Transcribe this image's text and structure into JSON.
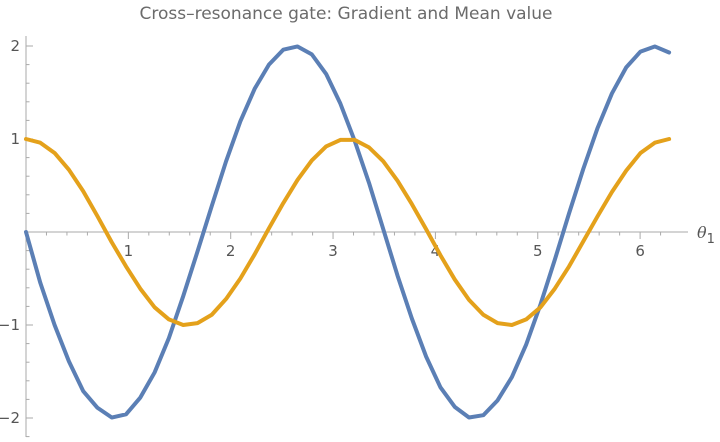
{
  "chart_data": {
    "type": "line",
    "title": "Cross–resonance gate: Gradient and Mean value",
    "xlabel": "θ",
    "xlabel_subscript": "1",
    "ylabel": "",
    "xlim": [
      0,
      6.35
    ],
    "ylim": [
      -2.2,
      2.1
    ],
    "x_ticks": [
      1,
      2,
      3,
      4,
      5,
      6
    ],
    "x_tick_labels": [
      "1",
      "2",
      "3",
      "4",
      "5",
      "6"
    ],
    "y_ticks": [
      -2,
      -1,
      1,
      2
    ],
    "y_tick_labels": [
      "−2",
      "−1",
      "1",
      "2"
    ],
    "grid": false,
    "legend": "none",
    "series": [
      {
        "color": "#5b7fb5",
        "x": [
          0,
          0.1396,
          0.2793,
          0.4189,
          0.5585,
          0.6981,
          0.8378,
          0.9774,
          1.117,
          1.2566,
          1.3963,
          1.5359,
          1.6755,
          1.8151,
          1.9548,
          2.0944,
          2.234,
          2.3736,
          2.5133,
          2.6529,
          2.7925,
          2.9322,
          3.0718,
          3.2114,
          3.351,
          3.4907,
          3.6303,
          3.7699,
          3.9095,
          4.0492,
          4.1888,
          4.3284,
          4.4681,
          4.6077,
          4.7473,
          4.8869,
          5.0266,
          5.1662,
          5.3058,
          5.4454,
          5.5851,
          5.7247,
          5.8643,
          6.0039,
          6.1436,
          6.2832
        ],
        "y": [
          0,
          -0.546,
          -1.0,
          -1.39,
          -1.71,
          -1.89,
          -1.995,
          -1.96,
          -1.78,
          -1.51,
          -1.14,
          -0.69,
          -0.21,
          0.28,
          0.76,
          1.19,
          1.54,
          1.8,
          1.96,
          1.995,
          1.91,
          1.7,
          1.38,
          0.98,
          0.53,
          0.03,
          -0.47,
          -0.93,
          -1.34,
          -1.67,
          -1.88,
          -1.995,
          -1.97,
          -1.81,
          -1.56,
          -1.21,
          -0.78,
          -0.3,
          0.2,
          0.68,
          1.12,
          1.49,
          1.77,
          1.94,
          1.995,
          1.93
        ]
      },
      {
        "color": "#e4a11b",
        "x": [
          0,
          0.1396,
          0.2793,
          0.4189,
          0.5585,
          0.6981,
          0.8378,
          0.9774,
          1.117,
          1.2566,
          1.3963,
          1.5359,
          1.6755,
          1.8151,
          1.9548,
          2.0944,
          2.234,
          2.3736,
          2.5133,
          2.6529,
          2.7925,
          2.9322,
          3.0718,
          3.2114,
          3.351,
          3.4907,
          3.6303,
          3.7699,
          3.9095,
          4.0492,
          4.1888,
          4.3284,
          4.4681,
          4.6077,
          4.7473,
          4.8869,
          5.0266,
          5.1662,
          5.3058,
          5.4454,
          5.5851,
          5.7247,
          5.8643,
          6.0039,
          6.1436,
          6.2832
        ],
        "y": [
          1.0,
          0.96,
          0.85,
          0.67,
          0.44,
          0.17,
          -0.11,
          -0.37,
          -0.61,
          -0.81,
          -0.94,
          -1.0,
          -0.98,
          -0.89,
          -0.72,
          -0.5,
          -0.24,
          0.04,
          0.31,
          0.56,
          0.77,
          0.92,
          0.99,
          0.99,
          0.91,
          0.76,
          0.55,
          0.3,
          0.03,
          -0.25,
          -0.51,
          -0.73,
          -0.89,
          -0.98,
          -1.0,
          -0.94,
          -0.81,
          -0.61,
          -0.37,
          -0.1,
          0.17,
          0.43,
          0.66,
          0.85,
          0.96,
          1.0
        ]
      }
    ]
  }
}
